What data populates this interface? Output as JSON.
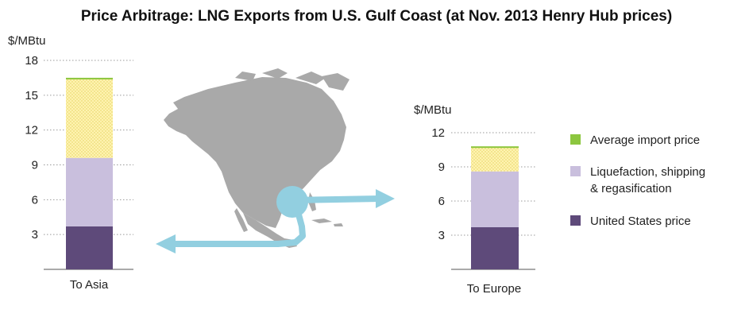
{
  "title": "Price Arbitrage: LNG Exports from U.S. Gulf Coast (at Nov. 2013 Henry Hub prices)",
  "colors": {
    "us_price": "#5e4a7a",
    "liquefaction": "#c9bfdd",
    "import_fill": "#fff3b0",
    "import_dots": "#e2cf5a",
    "avg_import_swatch": "#8cc63f",
    "arrow": "#92cfe0",
    "map": "#a9a9a9",
    "gridline": "#9a9a9a"
  },
  "legend": {
    "items": [
      {
        "label": "Average import price",
        "color": "#8cc63f"
      },
      {
        "label": "Liquefaction, shipping\n& regasification",
        "color": "#c9bfdd"
      },
      {
        "label": "United States price",
        "color": "#5e4a7a"
      }
    ]
  },
  "map_icon": "north-america-map-icon",
  "chart_data": [
    {
      "type": "bar",
      "stacked": true,
      "ylabel": "$/MBtu",
      "ylim": [
        0,
        18
      ],
      "yticks": [
        3,
        6,
        9,
        12,
        15,
        18
      ],
      "categories": [
        "To Asia"
      ],
      "series": [
        {
          "name": "United States price",
          "values": [
            3.7
          ]
        },
        {
          "name": "Liquefaction, shipping & regasification",
          "values": [
            5.9
          ]
        },
        {
          "name": "Average import price",
          "values": [
            6.9
          ]
        }
      ],
      "total": 16.5,
      "grid": true
    },
    {
      "type": "bar",
      "stacked": true,
      "ylabel": "$/MBtu",
      "ylim": [
        0,
        12
      ],
      "yticks": [
        3,
        6,
        9,
        12
      ],
      "categories": [
        "To Europe"
      ],
      "series": [
        {
          "name": "United States price",
          "values": [
            3.7
          ]
        },
        {
          "name": "Liquefaction, shipping & regasification",
          "values": [
            4.9
          ]
        },
        {
          "name": "Average import price",
          "values": [
            2.2
          ]
        }
      ],
      "total": 10.8,
      "grid": true
    }
  ]
}
